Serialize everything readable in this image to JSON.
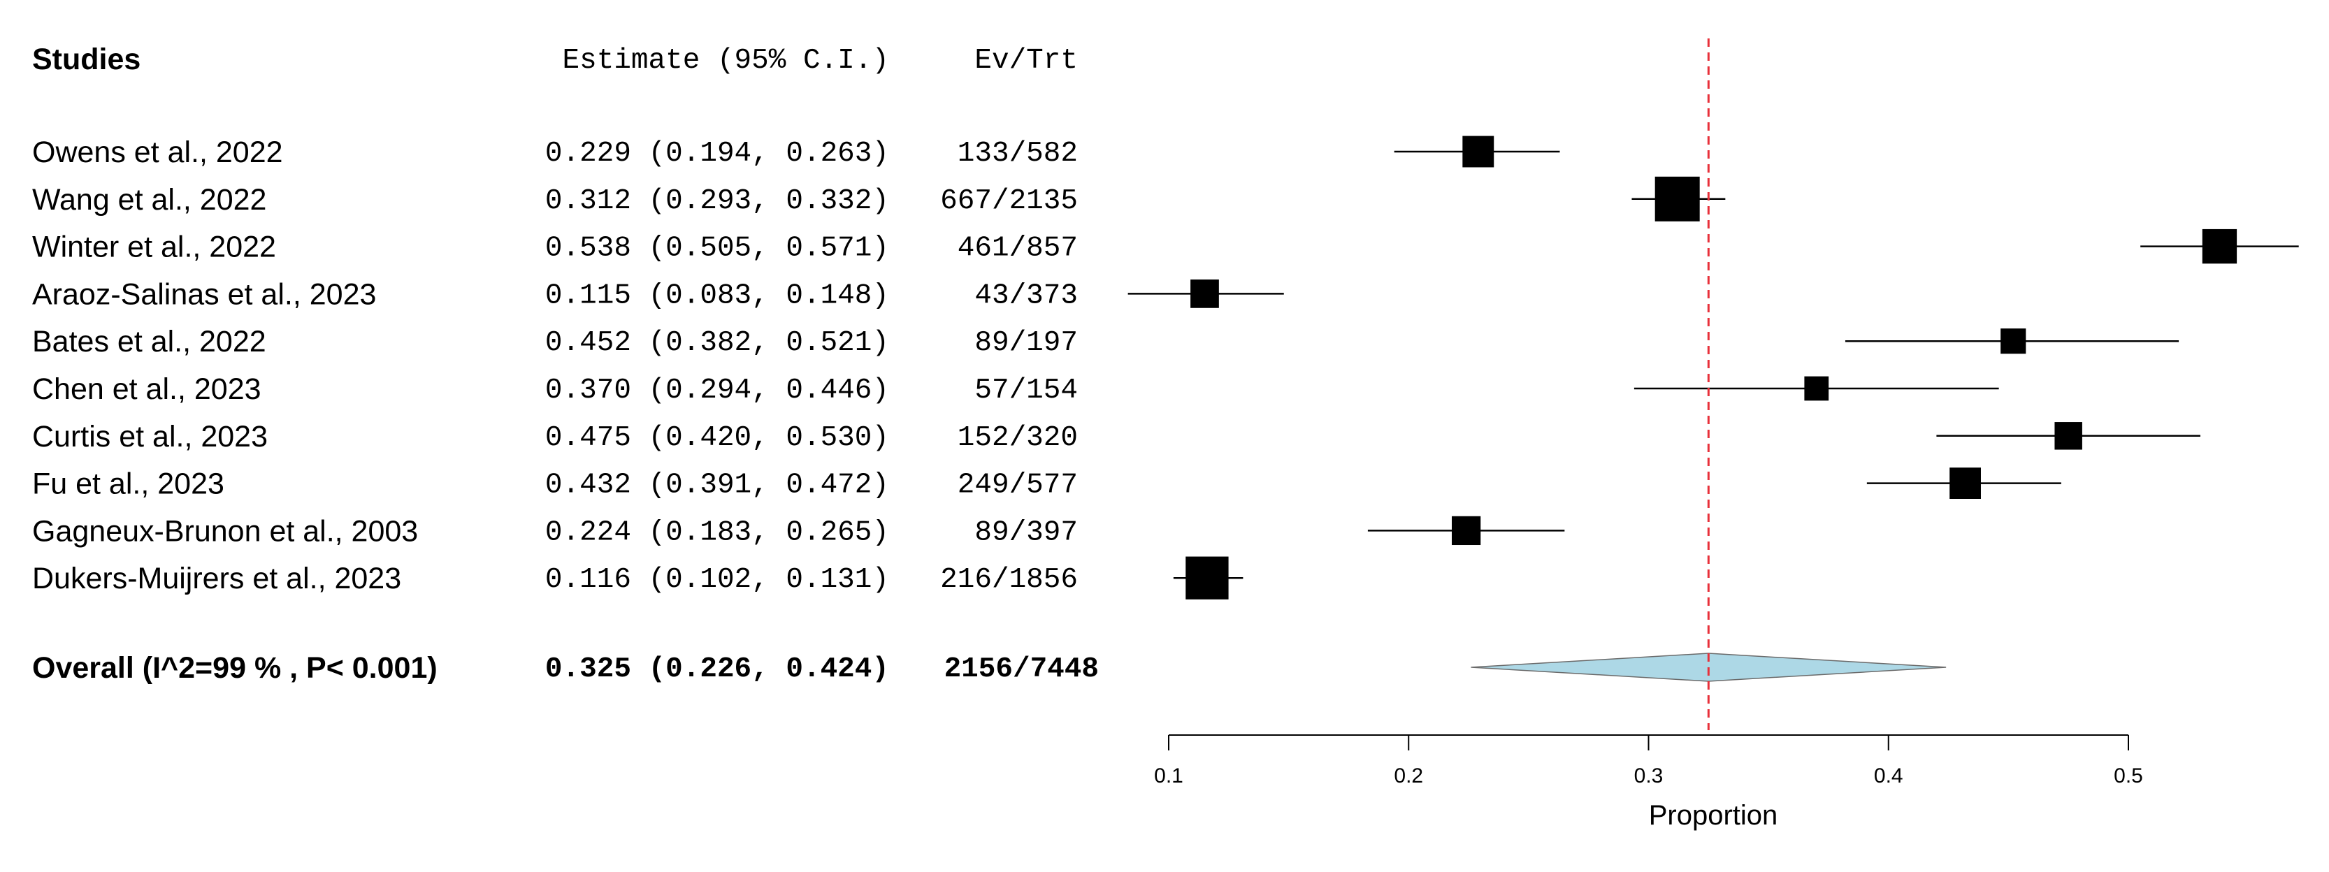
{
  "chart_data": {
    "type": "forest",
    "headers": {
      "studies": "Studies",
      "estimate": "Estimate (95% C.I.)",
      "events": "Ev/Trt"
    },
    "studies": [
      {
        "name": "Owens et al., 2022",
        "estimate": 0.229,
        "ci_low": 0.194,
        "ci_high": 0.263,
        "events": 133,
        "total": 582,
        "estimate_text": "0.229 (0.194, 0.263)",
        "ev_trt_text": "133/582"
      },
      {
        "name": "Wang et al., 2022",
        "estimate": 0.312,
        "ci_low": 0.293,
        "ci_high": 0.332,
        "events": 667,
        "total": 2135,
        "estimate_text": "0.312 (0.293, 0.332)",
        "ev_trt_text": "667/2135"
      },
      {
        "name": "Winter et al., 2022",
        "estimate": 0.538,
        "ci_low": 0.505,
        "ci_high": 0.571,
        "events": 461,
        "total": 857,
        "estimate_text": "0.538 (0.505, 0.571)",
        "ev_trt_text": "461/857"
      },
      {
        "name": "Araoz-Salinas et al., 2023",
        "estimate": 0.115,
        "ci_low": 0.083,
        "ci_high": 0.148,
        "events": 43,
        "total": 373,
        "estimate_text": "0.115 (0.083, 0.148)",
        "ev_trt_text": "43/373"
      },
      {
        "name": "Bates et al., 2022",
        "estimate": 0.452,
        "ci_low": 0.382,
        "ci_high": 0.521,
        "events": 89,
        "total": 197,
        "estimate_text": "0.452 (0.382, 0.521)",
        "ev_trt_text": "89/197"
      },
      {
        "name": "Chen et al., 2023",
        "estimate": 0.37,
        "ci_low": 0.294,
        "ci_high": 0.446,
        "events": 57,
        "total": 154,
        "estimate_text": "0.370 (0.294, 0.446)",
        "ev_trt_text": "57/154"
      },
      {
        "name": "Curtis et al., 2023",
        "estimate": 0.475,
        "ci_low": 0.42,
        "ci_high": 0.53,
        "events": 152,
        "total": 320,
        "estimate_text": "0.475 (0.420, 0.530)",
        "ev_trt_text": "152/320"
      },
      {
        "name": "Fu et al., 2023",
        "estimate": 0.432,
        "ci_low": 0.391,
        "ci_high": 0.472,
        "events": 249,
        "total": 577,
        "estimate_text": "0.432 (0.391, 0.472)",
        "ev_trt_text": "249/577"
      },
      {
        "name": "Gagneux-Brunon et al., 2003",
        "estimate": 0.224,
        "ci_low": 0.183,
        "ci_high": 0.265,
        "events": 89,
        "total": 397,
        "estimate_text": "0.224 (0.183, 0.265)",
        "ev_trt_text": "89/397"
      },
      {
        "name": "Dukers-Muijrers et al., 2023",
        "estimate": 0.116,
        "ci_low": 0.102,
        "ci_high": 0.131,
        "events": 216,
        "total": 1856,
        "estimate_text": "0.116 (0.102, 0.131)",
        "ev_trt_text": "216/1856"
      }
    ],
    "overall": {
      "label": "Overall (I^2=99 % , P< 0.001)",
      "estimate": 0.325,
      "ci_low": 0.226,
      "ci_high": 0.424,
      "events": 2156,
      "total": 7448,
      "estimate_text": "0.325 (0.226, 0.424)",
      "ev_trt_text": "2156/7448",
      "i_squared_percent": 99,
      "p_value": "< 0.001"
    },
    "x_axis": {
      "label": "Proportion",
      "ticks": [
        0.1,
        0.2,
        0.3,
        0.4,
        0.5
      ],
      "tick_labels": [
        "0.1",
        "0.2",
        "0.3",
        "0.4",
        "0.5"
      ]
    },
    "reference_line": 0.325,
    "colors": {
      "reference_line": "#e8303a",
      "diamond_fill": "#add8e6",
      "marker": "#000000"
    }
  }
}
